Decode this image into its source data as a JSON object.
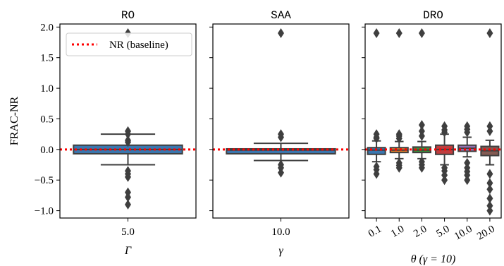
{
  "chart_data": {
    "type": "box",
    "ylabel": "FRAC-NR",
    "ylim": [
      -1.12,
      2.05
    ],
    "yticks": [
      -1.0,
      -0.5,
      0.0,
      0.5,
      1.0,
      1.5,
      2.0
    ],
    "ytick_labels": [
      "−1.0",
      "−0.5",
      "0.0",
      "0.5",
      "1.0",
      "1.5",
      "2.0"
    ],
    "baseline": {
      "label": "NR (baseline)",
      "value": 0.0,
      "color": "#ff0000"
    },
    "legend_position": "upper-left",
    "panels": [
      {
        "title": "RO",
        "xlabel": "Γ",
        "categories": [
          "5.0"
        ],
        "boxes": [
          {
            "q1": -0.07,
            "median": 0.0,
            "q3": 0.07,
            "whisker_low": -0.25,
            "whisker_high": 0.25,
            "outliers": [
              0.3,
              0.25,
              0.15,
              0.12,
              -0.35,
              -0.4,
              -0.45,
              -0.7,
              -0.78,
              -0.9,
              1.9
            ],
            "color": "#3a77b0"
          }
        ]
      },
      {
        "title": "SAA",
        "xlabel": "γ",
        "categories": [
          "10.0"
        ],
        "boxes": [
          {
            "q1": -0.07,
            "median": -0.01,
            "q3": 0.01,
            "whisker_low": -0.18,
            "whisker_high": 0.1,
            "outliers": [
              0.25,
              0.2,
              -0.25,
              -0.3,
              -0.38,
              1.9
            ],
            "color": "#3a77b0"
          }
        ]
      },
      {
        "title": "DRO",
        "xlabel": "θ (γ = 10)",
        "categories": [
          "0.1",
          "1.0",
          "2.0",
          "5.0",
          "10.0",
          "20.0"
        ],
        "boxes": [
          {
            "q1": -0.08,
            "median": -0.01,
            "q3": 0.03,
            "whisker_low": -0.2,
            "whisker_high": 0.14,
            "outliers": [
              0.25,
              0.2,
              0.18,
              -0.28,
              -0.33,
              -0.4,
              1.9
            ],
            "color": "#3a77b0"
          },
          {
            "q1": -0.05,
            "median": -0.01,
            "q3": 0.03,
            "whisker_low": -0.15,
            "whisker_high": 0.13,
            "outliers": [
              0.25,
              0.22,
              0.18,
              -0.22,
              -0.26,
              -0.3,
              1.9
            ],
            "color": "#e1812c"
          },
          {
            "q1": -0.05,
            "median": -0.01,
            "q3": 0.04,
            "whisker_low": -0.15,
            "whisker_high": 0.13,
            "outliers": [
              0.4,
              0.3,
              0.22,
              -0.2,
              -0.25,
              -0.3,
              1.9
            ],
            "color": "#3a923a"
          },
          {
            "q1": -0.08,
            "median": 0.0,
            "q3": 0.07,
            "whisker_low": -0.25,
            "whisker_high": 0.25,
            "outliers": [
              0.38,
              0.32,
              0.28,
              -0.3,
              -0.35,
              -0.42,
              -0.5
            ],
            "color": "#c03d3e"
          },
          {
            "q1": -0.03,
            "median": 0.02,
            "q3": 0.07,
            "whisker_low": -0.12,
            "whisker_high": 0.2,
            "outliers": [
              0.38,
              0.33,
              0.28,
              -0.22,
              -0.3,
              -0.36,
              -0.42,
              -0.5
            ],
            "color": "#9372b2"
          },
          {
            "q1": -0.1,
            "median": -0.02,
            "q3": 0.05,
            "whisker_low": -0.25,
            "whisker_high": 0.15,
            "outliers": [
              0.38,
              0.3,
              -0.4,
              -0.55,
              -0.65,
              -0.8,
              -0.92,
              -1.0,
              1.9
            ],
            "color": "#845b53"
          }
        ]
      }
    ]
  }
}
